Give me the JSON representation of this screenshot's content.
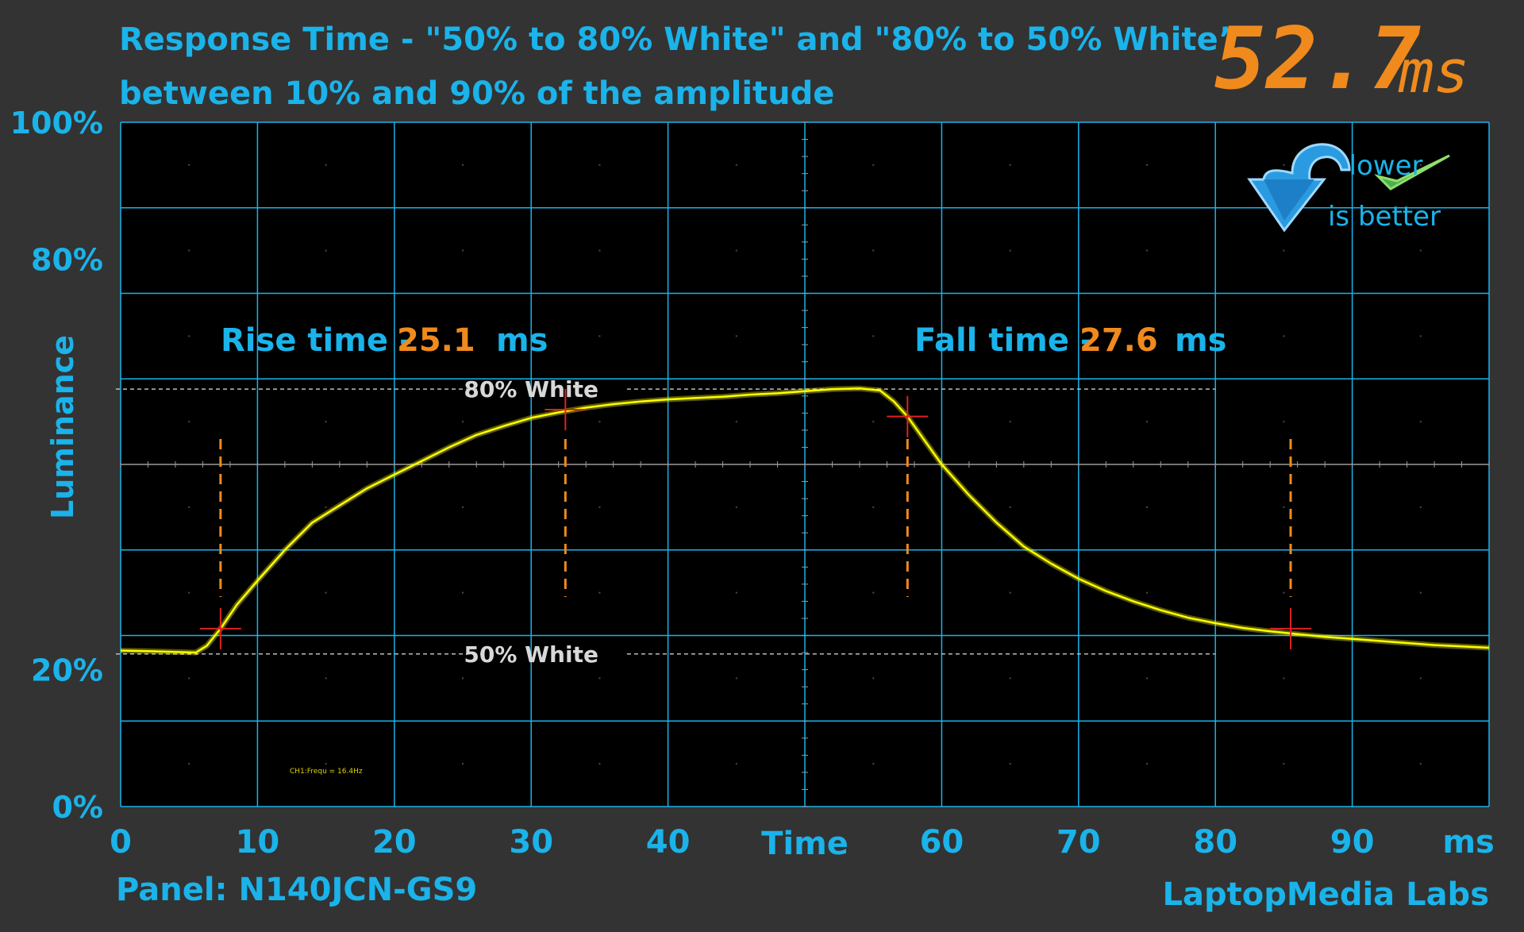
{
  "header": {
    "title_line1": "Response Time - \"50% to 80% White\" and \"80% to 50% White”",
    "title_line2": "between 10% and 90% of the amplitude",
    "total_value": "52.7",
    "total_unit": "ms"
  },
  "badge": {
    "line1": "lower",
    "line2": "is better",
    "icons": [
      "arrow-down-icon",
      "checkmark-icon"
    ]
  },
  "footer": {
    "panel": "Panel: N140JCN-GS9",
    "brand": "LaptopMedia Labs"
  },
  "colors": {
    "background": "#333333",
    "plot_background": "#000000",
    "grid": "#1ab3ea",
    "text_blue": "#1ab3ea",
    "value_orange": "#f08a1c",
    "trace_yellow": "#ffff00",
    "marker_red": "#e02020"
  },
  "chart_data": {
    "type": "line",
    "xlabel": "Time",
    "x_unit_label": "ms",
    "ylabel": "Luminance",
    "xlim": [
      0,
      100
    ],
    "ylim": [
      0,
      100
    ],
    "x_ticks": [
      0,
      10,
      20,
      30,
      40,
      60,
      70,
      80,
      90
    ],
    "x_tick_labels": [
      "0",
      "10",
      "20",
      "30",
      "40",
      "60",
      "70",
      "80",
      "90"
    ],
    "y_ticks": [
      0,
      20,
      80,
      100
    ],
    "y_tick_labels": [
      "0%",
      "20%",
      "80%",
      "100%"
    ],
    "grid": true,
    "reference_lines": [
      {
        "label": "80% White",
        "y": 61
      },
      {
        "label": "50% White",
        "y": 22.3
      }
    ],
    "annotations": {
      "rise_label": "Rise time -",
      "rise_value": "25.1",
      "rise_unit": "ms",
      "fall_label": "Fall time -",
      "fall_value": "27.6",
      "fall_unit": "ms"
    },
    "markers": [
      {
        "x": 7.3,
        "y": 26
      },
      {
        "x": 32.5,
        "y": 58
      },
      {
        "x": 57.5,
        "y": 57
      },
      {
        "x": 85.5,
        "y": 26
      }
    ],
    "dashed_markers_x": [
      7.3,
      32.5,
      57.5,
      85.5
    ],
    "channel_readout": "CH1:Frequ = 16.4Hz",
    "series": [
      {
        "x": [
          0,
          2,
          4,
          5.5,
          6.3,
          7.3,
          8.5,
          10,
          12,
          14,
          16,
          18,
          20,
          22,
          24,
          26,
          28,
          30,
          32,
          34,
          36,
          38,
          40,
          42,
          44,
          46,
          48,
          50,
          52,
          54,
          55.5,
          56.5,
          57.5,
          58.5,
          60,
          62,
          64,
          66,
          68,
          70,
          72,
          74,
          76,
          78,
          80,
          82,
          84,
          86,
          88,
          90,
          92,
          94,
          96,
          98,
          100
        ],
        "y": [
          22.8,
          22.7,
          22.6,
          22.5,
          23.5,
          26,
          29.5,
          33,
          37.5,
          41.5,
          44,
          46.5,
          48.5,
          50.5,
          52.5,
          54.3,
          55.6,
          56.8,
          57.6,
          58.3,
          58.8,
          59.2,
          59.5,
          59.7,
          59.9,
          60.2,
          60.4,
          60.7,
          61,
          61.1,
          60.8,
          59.2,
          57,
          54.2,
          50,
          45.5,
          41.5,
          38,
          35.5,
          33.3,
          31.5,
          30,
          28.7,
          27.6,
          26.8,
          26.1,
          25.6,
          25.2,
          24.8,
          24.5,
          24.2,
          23.9,
          23.6,
          23.4,
          23.2
        ]
      }
    ]
  }
}
